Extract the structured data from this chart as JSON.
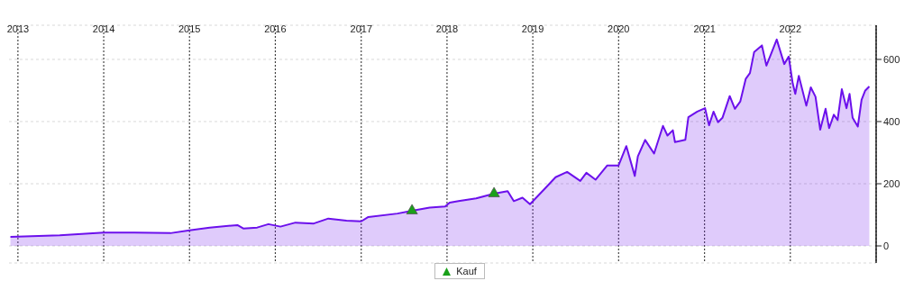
{
  "chart_data": {
    "type": "area",
    "xlim": [
      "2012-11-01",
      "2023-01-01"
    ],
    "xticks": [
      "2013",
      "2014",
      "2015",
      "2016",
      "2017",
      "2018",
      "2019",
      "2020",
      "2021",
      "2022"
    ],
    "ylim": [
      -55,
      710
    ],
    "yticks": [
      0,
      200,
      400,
      600
    ],
    "grid": true,
    "legend": "bottom",
    "series": [
      {
        "color": "#6c10ec",
        "x": [
          "2012-11-30",
          "2013-06-28",
          "2014-01-01",
          "2014-05-12",
          "2014-10-12",
          "2015-01-01",
          "2015-03-28",
          "2015-07-24",
          "2015-08-18",
          "2015-10-16",
          "2015-12-03",
          "2016-01-23",
          "2016-03-27",
          "2016-06-13",
          "2016-08-14",
          "2016-10-30",
          "2017-01-01",
          "2017-01-31",
          "2017-06-04",
          "2017-08-05",
          "2017-10-19",
          "2017-12-24",
          "2018-01-12",
          "2018-02-19",
          "2018-05-05",
          "2018-07-20",
          "2018-09-16",
          "2018-10-12",
          "2018-11-18",
          "2018-12-20",
          "2019-02-21",
          "2019-04-08",
          "2019-05-27",
          "2019-07-22",
          "2019-08-17",
          "2019-09-25",
          "2019-11-14",
          "2020-01-01",
          "2020-02-03",
          "2020-03-10",
          "2020-03-23",
          "2020-04-23",
          "2020-05-31",
          "2020-07-08",
          "2020-07-27",
          "2020-08-19",
          "2020-08-28",
          "2020-10-11",
          "2020-10-24",
          "2020-12-01",
          "2021-01-03",
          "2021-01-20",
          "2021-02-08",
          "2021-02-27",
          "2021-03-18",
          "2021-04-18",
          "2021-05-10",
          "2021-06-02",
          "2021-06-25",
          "2021-07-13",
          "2021-07-31",
          "2021-09-02",
          "2021-09-21",
          "2021-10-09",
          "2021-11-04",
          "2021-12-06",
          "2021-12-25",
          "2022-01-11",
          "2022-01-22",
          "2022-02-06",
          "2022-03-10",
          "2022-03-29",
          "2022-04-18",
          "2022-05-08",
          "2022-05-31",
          "2022-06-15",
          "2022-07-05",
          "2022-07-21",
          "2022-08-08",
          "2022-08-28",
          "2022-09-10",
          "2022-09-23",
          "2022-10-15",
          "2022-10-31",
          "2022-11-15",
          "2022-12-03"
        ],
        "values": [
          29,
          34,
          43,
          43,
          41,
          50,
          59,
          67,
          56,
          59,
          70,
          62,
          75,
          72,
          88,
          81,
          79,
          93,
          104,
          113,
          123,
          127,
          139,
          144,
          153,
          168,
          176,
          144,
          155,
          134,
          184,
          221,
          238,
          209,
          235,
          213,
          259,
          259,
          321,
          225,
          288,
          341,
          297,
          386,
          355,
          372,
          334,
          341,
          414,
          432,
          443,
          388,
          432,
          398,
          412,
          482,
          441,
          465,
          537,
          556,
          624,
          645,
          580,
          614,
          664,
          585,
          609,
          523,
          489,
          547,
          451,
          510,
          480,
          374,
          441,
          379,
          422,
          405,
          504,
          443,
          489,
          412,
          384,
          470,
          499,
          513
        ]
      },
      {
        "type": "scatter",
        "name": "Kauf",
        "marker": "triangle",
        "color": "#1aa01a",
        "x": [
          "2017-08-05",
          "2018-07-20"
        ],
        "values": [
          113,
          168
        ]
      }
    ]
  }
}
